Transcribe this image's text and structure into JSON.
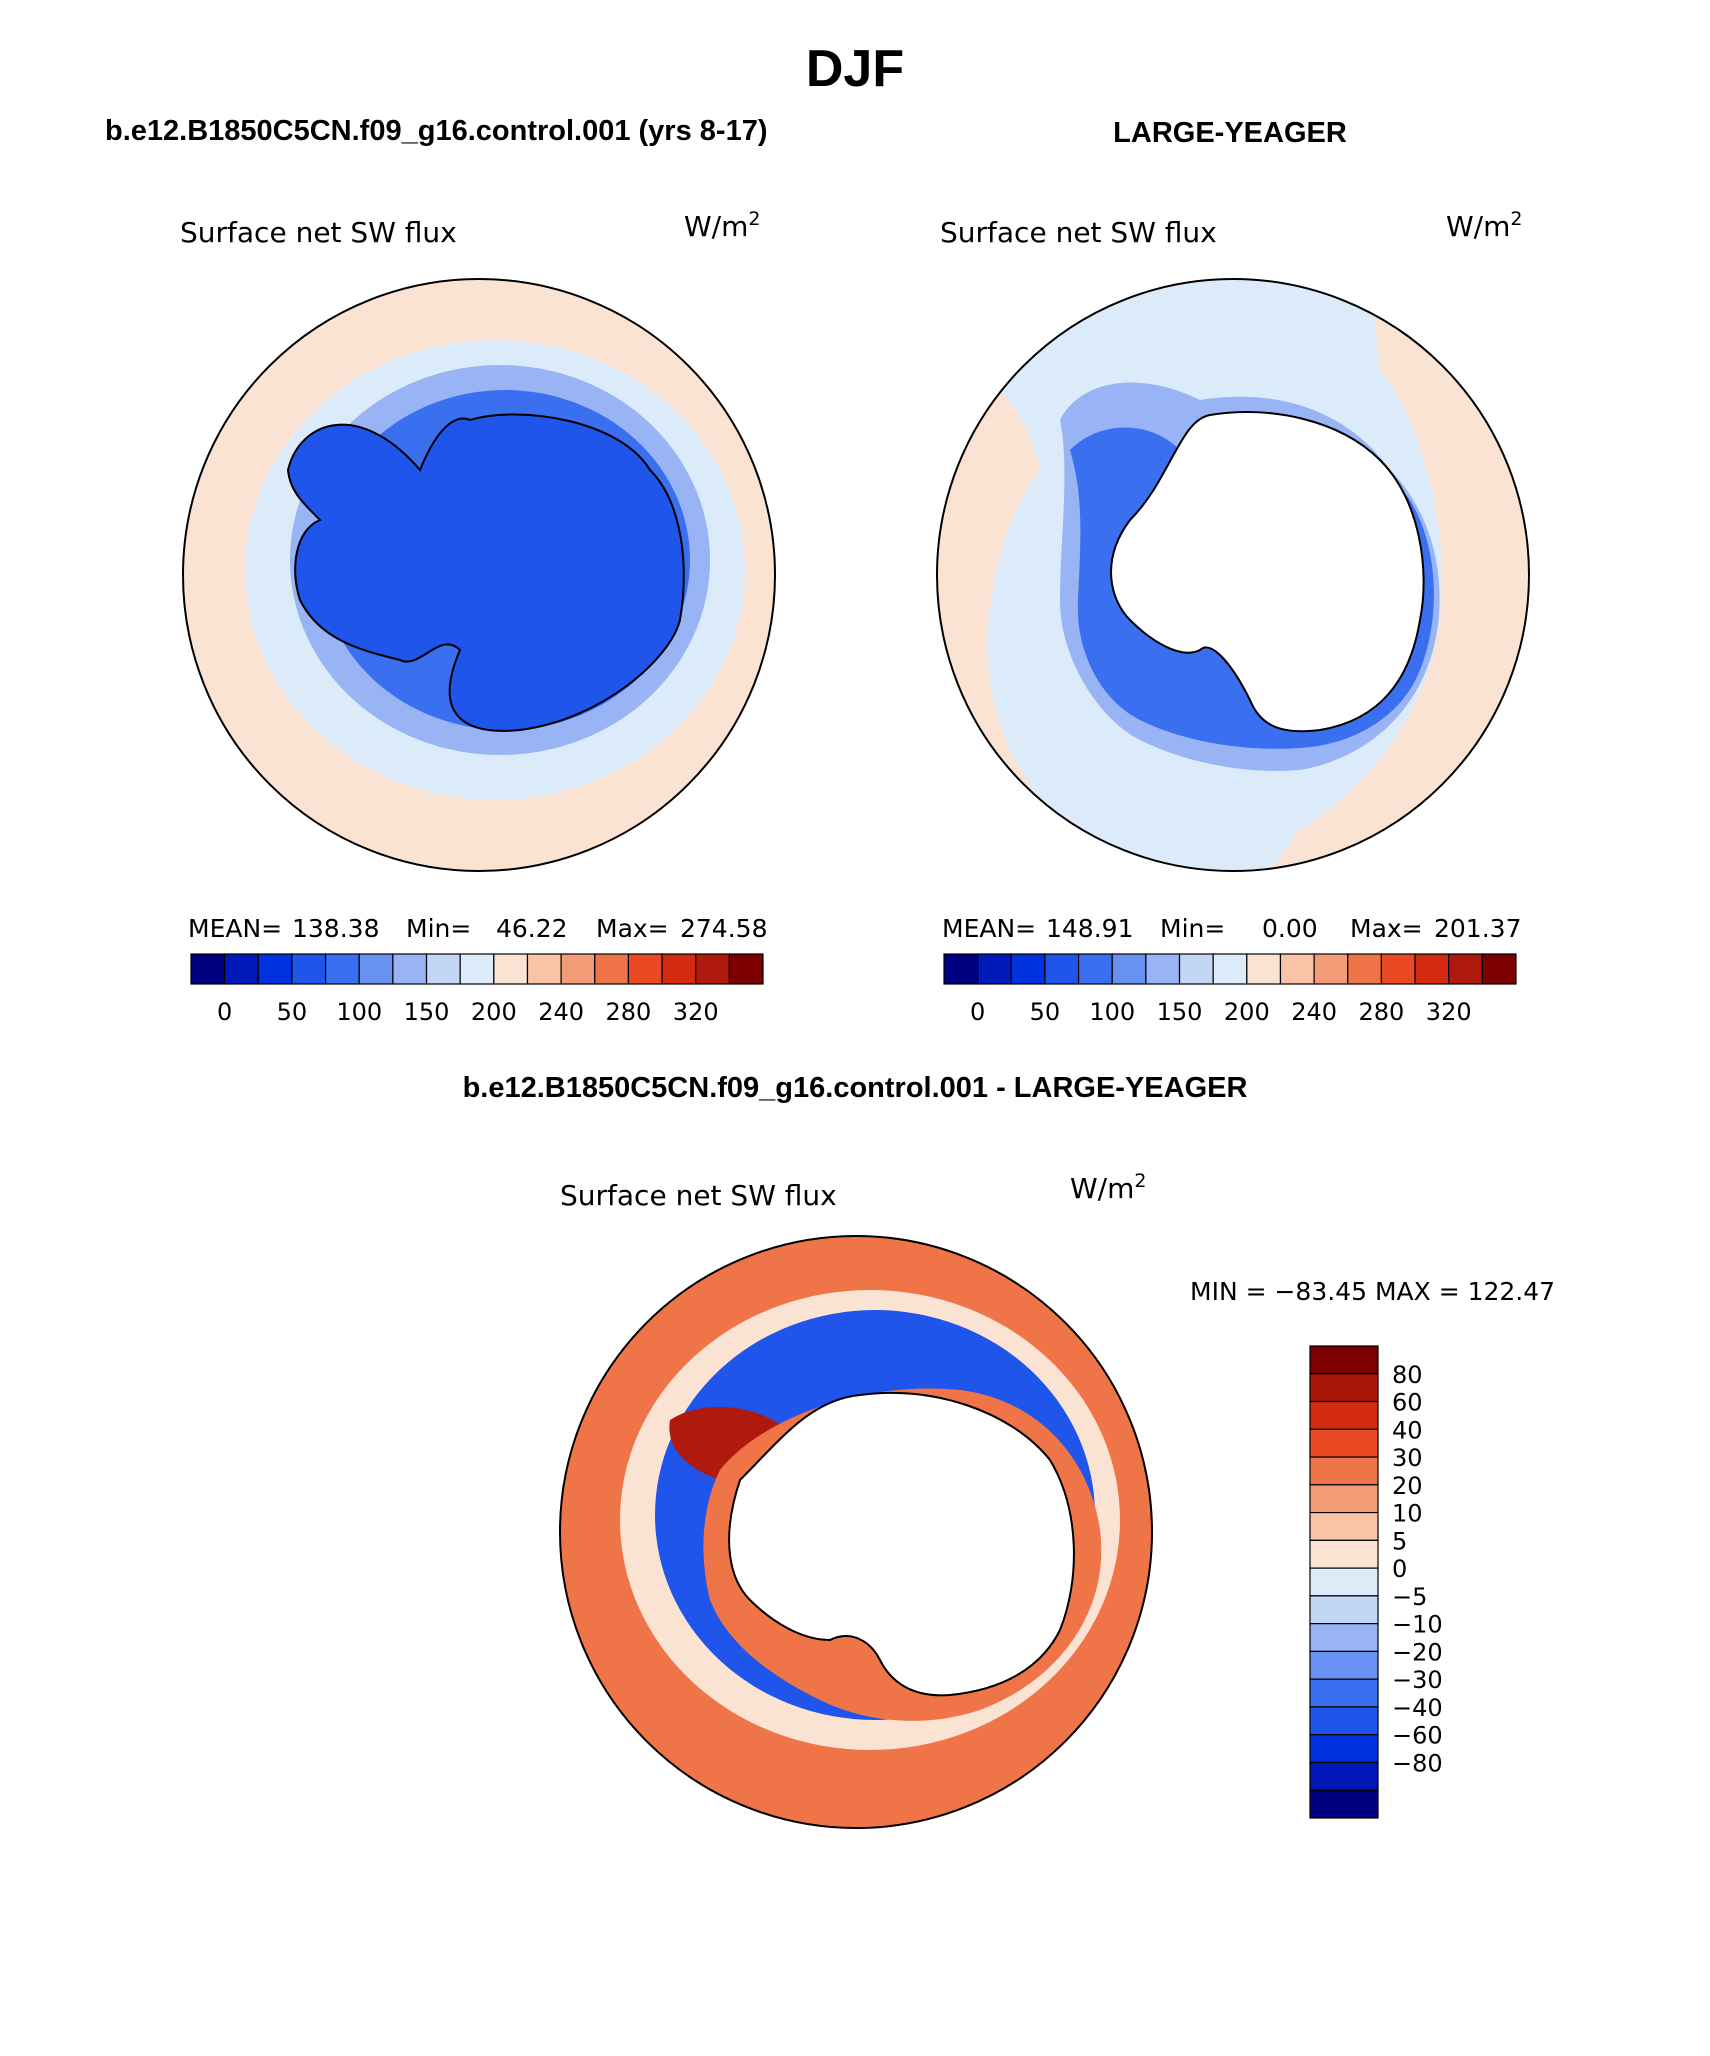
{
  "figure": {
    "season": "DJF",
    "diff_title": "b.e12.B1850C5CN.f09_g16.control.001 - LARGE-YEAGER"
  },
  "panels": [
    {
      "case": "b.e12.B1850C5CN.f09_g16.control.001 (yrs 8-17)",
      "variable": "Surface net SW flux",
      "units": "W/m",
      "units_sup": "2",
      "stats": {
        "mean_label": "MEAN=",
        "mean": "138.38",
        "min_label": "Min=",
        "min": "46.22",
        "max_label": "Max=",
        "max": "274.58"
      },
      "colorbar": {
        "colors": [
          "#000080",
          "#0019b8",
          "#0032e0",
          "#1f55ea",
          "#3a6ff0",
          "#6891f2",
          "#98b4f4",
          "#c4d6f6",
          "#dcebfa",
          "#fbe3d4",
          "#f9c3a8",
          "#f39c78",
          "#ef7448",
          "#e94a24",
          "#d42a12",
          "#b01a0c",
          "#7c0000"
        ],
        "tick_labels": [
          "0",
          "50",
          "100",
          "150",
          "200",
          "240",
          "280",
          "320"
        ]
      }
    },
    {
      "case": "LARGE-YEAGER",
      "variable": "Surface net SW flux",
      "units": "W/m",
      "units_sup": "2",
      "stats": {
        "mean_label": "MEAN=",
        "mean": "148.91",
        "min_label": "Min=",
        "min": "0.00",
        "max_label": "Max=",
        "max": "201.37"
      },
      "colorbar": {
        "colors": [
          "#000080",
          "#0019b8",
          "#0032e0",
          "#1f55ea",
          "#3a6ff0",
          "#6891f2",
          "#98b4f4",
          "#c4d6f6",
          "#dcebfa",
          "#fbe3d4",
          "#f9c3a8",
          "#f39c78",
          "#ef7448",
          "#e94a24",
          "#d42a12",
          "#b01a0c",
          "#7c0000"
        ],
        "tick_labels": [
          "0",
          "50",
          "100",
          "150",
          "200",
          "240",
          "280",
          "320"
        ]
      }
    },
    {
      "variable": "Surface net SW flux",
      "units": "W/m",
      "units_sup": "2",
      "minmax": "MIN = −83.45 MAX = 122.47",
      "colorbar": {
        "colors": [
          "#7c0000",
          "#a8170a",
          "#d42a12",
          "#e94a24",
          "#ef7448",
          "#f39c78",
          "#f9c3a8",
          "#fbe3d4",
          "#dcebfa",
          "#c4d6f6",
          "#98b4f4",
          "#6891f2",
          "#3a6ff0",
          "#1f55ea",
          "#0032e0",
          "#0019b8",
          "#000080"
        ],
        "tick_labels": [
          "80",
          "60",
          "40",
          "30",
          "20",
          "10",
          "5",
          "0",
          "−5",
          "−10",
          "−20",
          "−30",
          "−40",
          "−60",
          "−80"
        ]
      }
    }
  ],
  "map_colors": {
    "ocean_warm": "#fbe3d4",
    "ice_light": "#dcebfa",
    "ice_mid": "#98b4f4",
    "ice_dark": "#3a6ff0",
    "land_blue": "#1f55ea",
    "diff_red": "#ef7448",
    "diff_dark_red": "#b01a0c",
    "diff_blue": "#1f55ea"
  }
}
